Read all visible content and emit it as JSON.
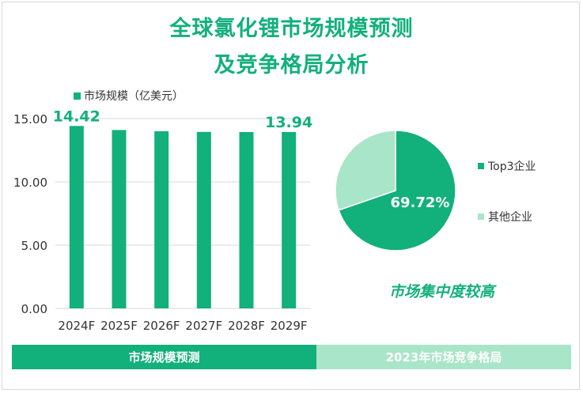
{
  "title_line1": "全球氯化锂市场规模预测",
  "title_line2": "及竞争格局分析",
  "colors": {
    "primary": "#12b07a",
    "light": "#a9e5c8"
  },
  "chart_data": [
    {
      "type": "bar",
      "legend": "市场规模（亿美元）",
      "categories": [
        "2024F",
        "2025F",
        "2026F",
        "2027F",
        "2028F",
        "2029F"
      ],
      "series": [
        {
          "name": "市场规模（亿美元）",
          "values": [
            14.42,
            14.1,
            14.0,
            13.95,
            13.94,
            13.94
          ]
        }
      ],
      "data_labels": [
        {
          "index": 0,
          "text": "14.42"
        },
        {
          "index": 5,
          "text": "13.94"
        }
      ],
      "yticks": [
        "0.00",
        "5.00",
        "10.00",
        "15.00"
      ],
      "ylim": [
        0,
        15
      ],
      "legend_position": "top"
    },
    {
      "type": "pie",
      "slices": [
        {
          "label": "Top3企业",
          "value": 69.72
        },
        {
          "label": "其他企业",
          "value": 30.28
        }
      ],
      "data_labels": [
        "69.72%"
      ],
      "legend_position": "right"
    }
  ],
  "conclusion": "市场集中度较高",
  "footer": {
    "left": "市场规模预测",
    "right": "2023年市场竞争格局"
  }
}
